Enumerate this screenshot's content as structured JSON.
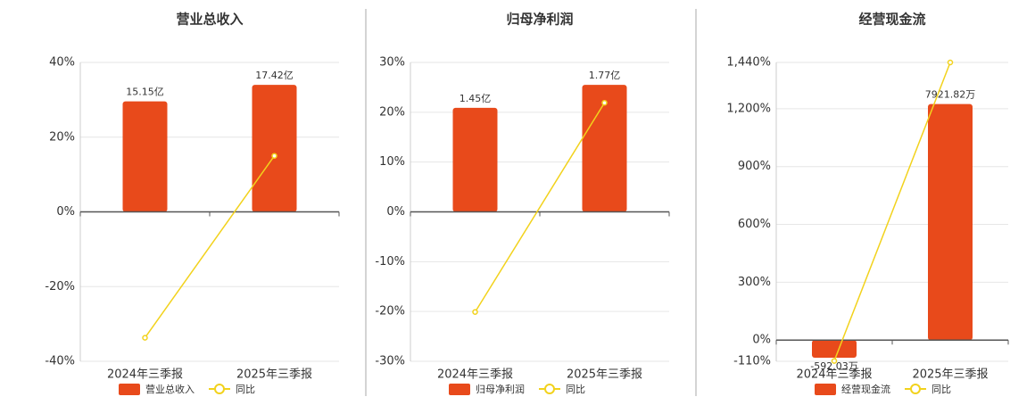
{
  "chart_data": [
    {
      "type": "bar",
      "title": "营业总收入",
      "categories": [
        "2024年三季报",
        "2025年三季报"
      ],
      "series": [
        {
          "name": "营业总收入",
          "color": "#e84a1b",
          "values": [
            15.15,
            17.42
          ],
          "value_labels": [
            "15.15亿",
            "17.42亿"
          ]
        },
        {
          "name": "同比",
          "color": "#f2d21c",
          "type": "line",
          "values": [
            -33.7,
            15.0
          ]
        }
      ],
      "ylim": [
        -40,
        40
      ],
      "yticks": [
        {
          "value": -40,
          "label": "-40%"
        },
        {
          "value": -20,
          "label": "-20%"
        },
        {
          "value": 0,
          "label": "0%"
        },
        {
          "value": 20,
          "label": "20%"
        },
        {
          "value": 40,
          "label": "40%"
        }
      ],
      "grid": true
    },
    {
      "type": "bar",
      "title": "归母净利润",
      "categories": [
        "2024年三季报",
        "2025年三季报"
      ],
      "series": [
        {
          "name": "归母净利润",
          "color": "#e84a1b",
          "values": [
            1.45,
            1.77
          ],
          "value_labels": [
            "1.45亿",
            "1.77亿"
          ]
        },
        {
          "name": "同比",
          "color": "#f2d21c",
          "type": "line",
          "values": [
            -20.1,
            21.9
          ]
        }
      ],
      "ylim": [
        -30,
        30
      ],
      "yticks": [
        {
          "value": -30,
          "label": "-30%"
        },
        {
          "value": -20,
          "label": "-20%"
        },
        {
          "value": -10,
          "label": "-10%"
        },
        {
          "value": 0,
          "label": "0%"
        },
        {
          "value": 10,
          "label": "10%"
        },
        {
          "value": 20,
          "label": "20%"
        },
        {
          "value": 30,
          "label": "30%"
        }
      ],
      "grid": true
    },
    {
      "type": "bar",
      "title": "经营现金流",
      "categories": [
        "2024年三季报",
        "2025年三季报"
      ],
      "series": [
        {
          "name": "经营现金流",
          "color": "#e84a1b",
          "values": [
            -592.03,
            7921.82
          ],
          "value_labels": [
            "-592.03万",
            "7921.82万"
          ]
        },
        {
          "name": "同比",
          "color": "#f2d21c",
          "type": "line",
          "values": [
            -108,
            1440
          ]
        }
      ],
      "ylim": [
        -110,
        1440
      ],
      "yticks": [
        {
          "value": -110,
          "label": "-110%"
        },
        {
          "value": 0,
          "label": "0%"
        },
        {
          "value": 300,
          "label": "300%"
        },
        {
          "value": 600,
          "label": "600%"
        },
        {
          "value": 900,
          "label": "900%"
        },
        {
          "value": 1200,
          "label": "1,200%"
        },
        {
          "value": 1440,
          "label": "1,440%"
        }
      ],
      "grid": true
    }
  ]
}
